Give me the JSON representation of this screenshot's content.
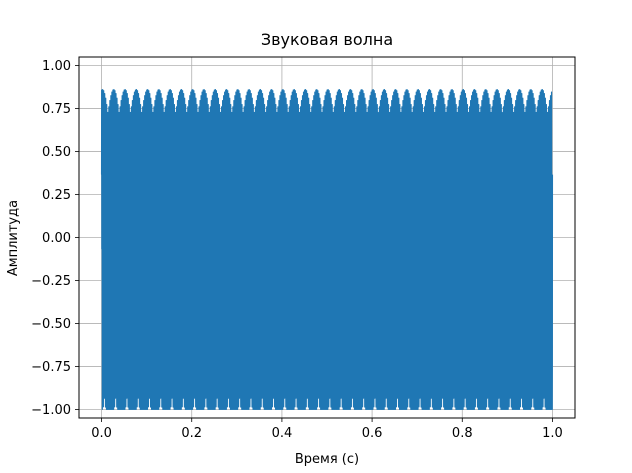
{
  "chart_data": {
    "type": "line",
    "title": "Звуковая волна",
    "xlabel": "Время (с)",
    "ylabel": "Амплитуда",
    "xlim": [
      -0.05,
      1.05
    ],
    "ylim": [
      -1.05,
      1.05
    ],
    "xticks": [
      0.0,
      0.2,
      0.4,
      0.6,
      0.8,
      1.0
    ],
    "xtick_labels": [
      "0.0",
      "0.2",
      "0.4",
      "0.6",
      "0.8",
      "1.0"
    ],
    "yticks": [
      -1.0,
      -0.75,
      -0.5,
      -0.25,
      0.0,
      0.25,
      0.5,
      0.75,
      1.0
    ],
    "ytick_labels": [
      "−1.00",
      "−0.75",
      "−0.50",
      "−0.25",
      "0.00",
      "0.25",
      "0.50",
      "0.75",
      "1.00"
    ],
    "grid": true,
    "series": [
      {
        "color": "#1f77b4",
        "signal": "dense periodic waveform, amplitude ±1.0",
        "x_range": [
          0.0,
          1.0
        ],
        "amplitude": 1.0
      }
    ]
  }
}
